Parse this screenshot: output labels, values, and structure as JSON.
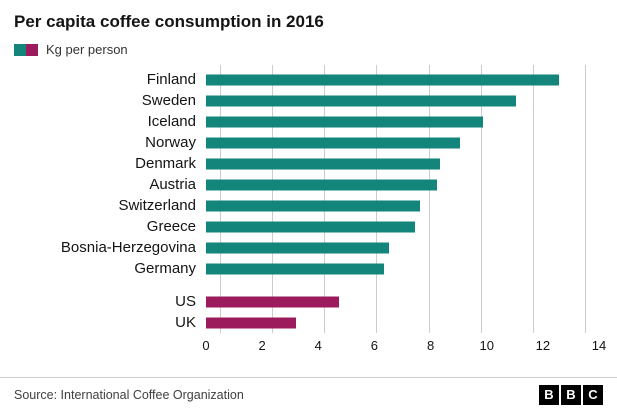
{
  "title": "Per capita coffee consumption in 2016",
  "legend": {
    "label": "Kg per person",
    "swatch_colors": [
      "#13857B",
      "#9B1B5C"
    ]
  },
  "footer": {
    "source": "Source: International Coffee Organization",
    "logo_letters": [
      "B",
      "B",
      "C"
    ]
  },
  "chart_data": {
    "type": "bar",
    "orientation": "horizontal",
    "title": "Per capita coffee consumption in 2016",
    "legend_label": "Kg per person",
    "xlabel": "",
    "ylabel": "",
    "xlim": [
      0,
      14
    ],
    "xticks": [
      0,
      2,
      4,
      6,
      8,
      10,
      12,
      14
    ],
    "grid": "vertical",
    "categories": [
      "Finland",
      "Sweden",
      "Iceland",
      "Norway",
      "Denmark",
      "Austria",
      "Switzerland",
      "Greece",
      "Bosnia-Herzegovina",
      "Germany",
      "US",
      "UK"
    ],
    "values": [
      12.5,
      11.0,
      9.8,
      9.0,
      8.3,
      8.2,
      7.6,
      7.4,
      6.5,
      6.3,
      4.7,
      3.2
    ],
    "bar_colors": [
      "#13857B",
      "#13857B",
      "#13857B",
      "#13857B",
      "#13857B",
      "#13857B",
      "#13857B",
      "#13857B",
      "#13857B",
      "#13857B",
      "#9B1B5C",
      "#9B1B5C"
    ],
    "gap_before_index": 10
  }
}
